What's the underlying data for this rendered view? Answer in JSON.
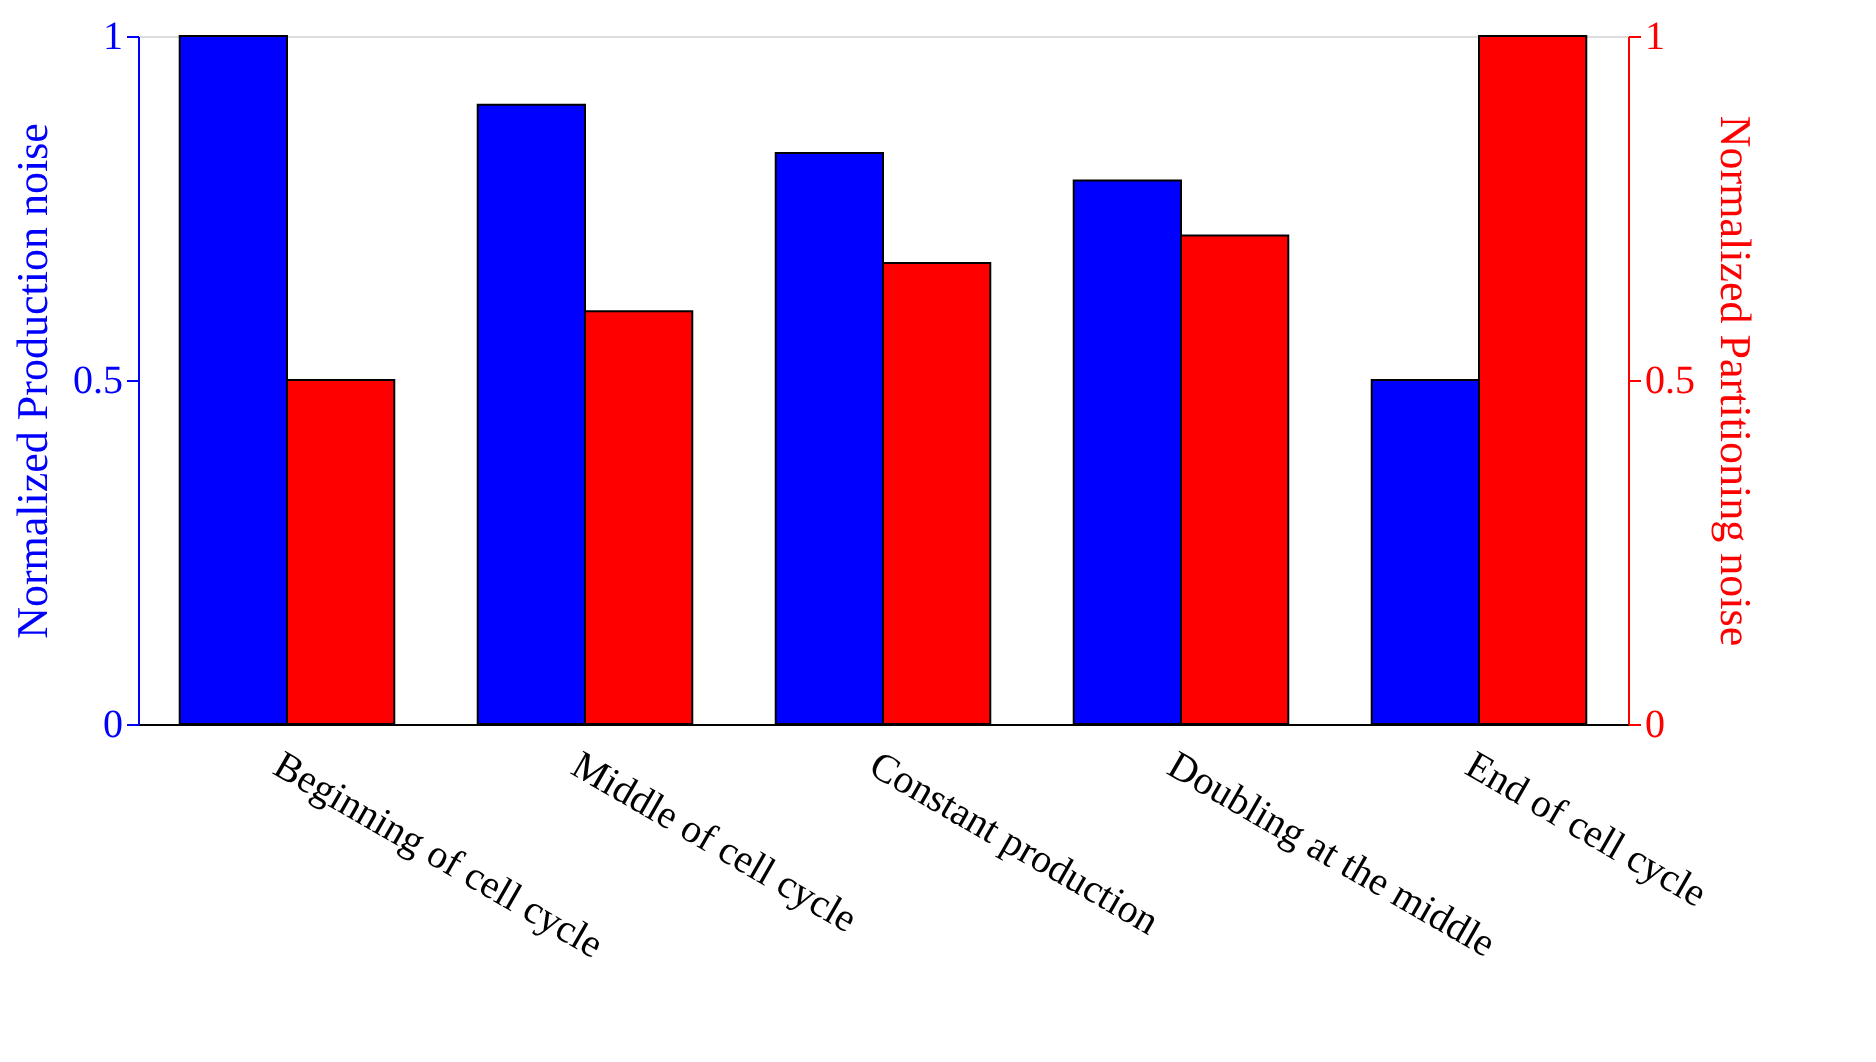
{
  "chart_data": {
    "type": "bar",
    "categories": [
      "Beginning of cell cycle",
      "Middle of cell cycle",
      "Constant production",
      "Doubling at the middle",
      "End of cell cycle"
    ],
    "ylabel": "Normalized Production noise",
    "y2label": "Normalized Partitioning noise",
    "ylim": [
      0,
      1
    ],
    "yticks": [
      0,
      0.5,
      1
    ],
    "y2lim": [
      0,
      1
    ],
    "y2ticks": [
      0,
      0.5,
      1
    ],
    "grid": false,
    "series": [
      {
        "color": "#0000ff",
        "values": [
          1.0,
          0.9,
          0.83,
          0.79,
          0.5
        ]
      },
      {
        "color": "#ff0000",
        "values": [
          0.5,
          0.6,
          0.67,
          0.71,
          1.0
        ],
        "axis": "y2"
      }
    ]
  }
}
